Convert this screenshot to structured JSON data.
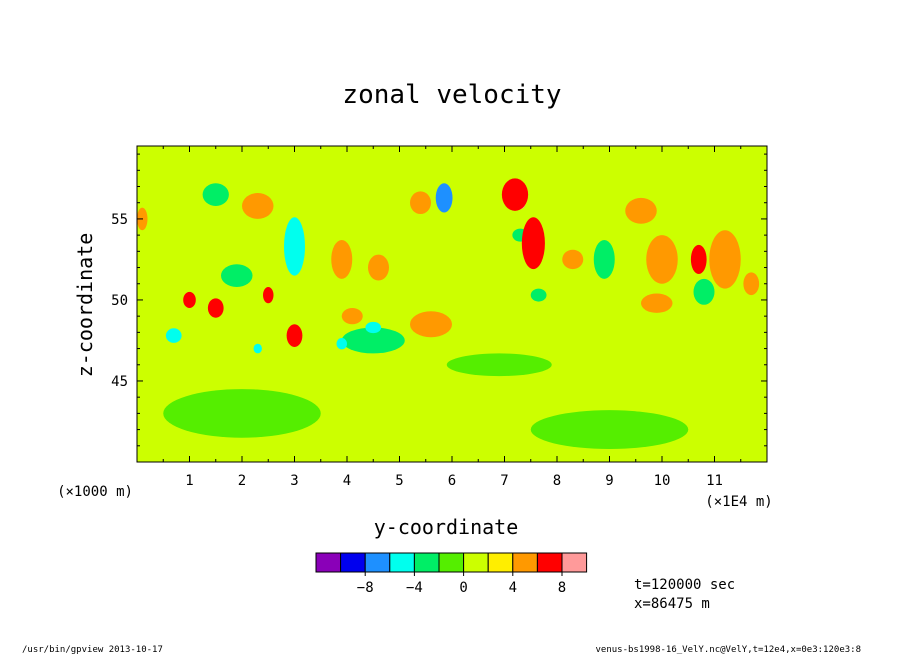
{
  "chart_data": {
    "type": "heatmap",
    "title": "zonal velocity",
    "xlabel": "y-coordinate",
    "ylabel": "z-coordinate",
    "x_scale_label": "(×1E4 m)",
    "y_scale_label": "(×1000 m)",
    "xlim": [
      0,
      12
    ],
    "ylim": [
      40,
      59.5
    ],
    "x_ticks": [
      "1",
      "2",
      "3",
      "4",
      "5",
      "6",
      "7",
      "8",
      "9",
      "10",
      "11"
    ],
    "y_ticks": [
      "45",
      "50",
      "55"
    ],
    "colorbar": {
      "levels": [
        -10,
        -8,
        -6,
        -4,
        -2,
        0,
        2,
        4,
        6,
        8,
        10
      ],
      "tick_labels": [
        "−8",
        "−4",
        "0",
        "4",
        "8"
      ],
      "colors": [
        "#8a00b8",
        "#0000ee",
        "#1e90ff",
        "#00ffee",
        "#00ee66",
        "#55ee00",
        "#ccff00",
        "#ffee00",
        "#ff9900",
        "#ff0000",
        "#ff9a9a"
      ]
    },
    "background_value": 1,
    "features": [
      {
        "y": 5.85,
        "z": 56.3,
        "value": -7.5,
        "wy": 0.16,
        "wz": 0.9
      },
      {
        "y": 3.0,
        "z": 53.3,
        "value": -5.5,
        "wy": 0.2,
        "wz": 1.8
      },
      {
        "y": 4.5,
        "z": 47.5,
        "value": -3.5,
        "wy": 0.6,
        "wz": 0.8
      },
      {
        "y": 4.5,
        "z": 48.3,
        "value": -5,
        "wy": 0.15,
        "wz": 0.35
      },
      {
        "y": 3.9,
        "z": 47.3,
        "value": -5,
        "wy": 0.1,
        "wz": 0.35
      },
      {
        "y": 0.7,
        "z": 47.8,
        "value": -5,
        "wy": 0.15,
        "wz": 0.45
      },
      {
        "y": 2.3,
        "z": 47.0,
        "value": -5,
        "wy": 0.08,
        "wz": 0.3
      },
      {
        "y": 1.5,
        "z": 56.5,
        "value": -3,
        "wy": 0.25,
        "wz": 0.7
      },
      {
        "y": 1.9,
        "z": 51.5,
        "value": -3,
        "wy": 0.3,
        "wz": 0.7
      },
      {
        "y": 8.9,
        "z": 52.5,
        "value": -3,
        "wy": 0.2,
        "wz": 1.2
      },
      {
        "y": 10.8,
        "z": 50.5,
        "value": -3,
        "wy": 0.2,
        "wz": 0.8
      },
      {
        "y": 7.3,
        "z": 54.0,
        "value": -3,
        "wy": 0.15,
        "wz": 0.4
      },
      {
        "y": 7.65,
        "z": 50.3,
        "value": -3,
        "wy": 0.15,
        "wz": 0.4
      },
      {
        "y": 7.6,
        "z": 53.2,
        "value": 9,
        "wy": 0.12,
        "wz": 1.0
      },
      {
        "y": 7.55,
        "z": 53.5,
        "value": 6,
        "wy": 0.22,
        "wz": 1.6
      },
      {
        "y": 7.3,
        "z": 56.0,
        "value": 9,
        "wy": 0.1,
        "wz": 0.4
      },
      {
        "y": 7.2,
        "z": 56.5,
        "value": 6,
        "wy": 0.25,
        "wz": 1.0
      },
      {
        "y": 1.0,
        "z": 50.0,
        "value": 6,
        "wy": 0.12,
        "wz": 0.5
      },
      {
        "y": 1.5,
        "z": 49.5,
        "value": 6,
        "wy": 0.15,
        "wz": 0.6
      },
      {
        "y": 3.0,
        "z": 47.8,
        "value": 6,
        "wy": 0.15,
        "wz": 0.7
      },
      {
        "y": 2.5,
        "z": 50.3,
        "value": 6,
        "wy": 0.1,
        "wz": 0.5
      },
      {
        "y": 10.7,
        "z": 52.5,
        "value": 6,
        "wy": 0.15,
        "wz": 0.9
      },
      {
        "y": 2.3,
        "z": 55.8,
        "value": 4,
        "wy": 0.3,
        "wz": 0.8
      },
      {
        "y": 3.9,
        "z": 52.5,
        "value": 4,
        "wy": 0.2,
        "wz": 1.2
      },
      {
        "y": 4.6,
        "z": 52.0,
        "value": 4,
        "wy": 0.2,
        "wz": 0.8
      },
      {
        "y": 4.1,
        "z": 49.0,
        "value": 4,
        "wy": 0.2,
        "wz": 0.5
      },
      {
        "y": 5.6,
        "z": 48.5,
        "value": 4,
        "wy": 0.4,
        "wz": 0.8
      },
      {
        "y": 8.3,
        "z": 52.5,
        "value": 4,
        "wy": 0.2,
        "wz": 0.6
      },
      {
        "y": 9.6,
        "z": 55.5,
        "value": 4,
        "wy": 0.3,
        "wz": 0.8
      },
      {
        "y": 10.0,
        "z": 52.5,
        "value": 4,
        "wy": 0.3,
        "wz": 1.5
      },
      {
        "y": 11.2,
        "z": 52.5,
        "value": 4,
        "wy": 0.3,
        "wz": 1.8
      },
      {
        "y": 9.9,
        "z": 49.8,
        "value": 4,
        "wy": 0.3,
        "wz": 0.6
      },
      {
        "y": 11.7,
        "z": 51.0,
        "value": 4,
        "wy": 0.15,
        "wz": 0.7
      },
      {
        "y": 0.1,
        "z": 55.0,
        "value": 4,
        "wy": 0.1,
        "wz": 0.7
      },
      {
        "y": 5.4,
        "z": 56.0,
        "value": 4,
        "wy": 0.2,
        "wz": 0.7
      },
      {
        "y": 6.9,
        "z": 46.0,
        "value": -2,
        "wy": 1.0,
        "wz": 0.7
      },
      {
        "y": 2.0,
        "z": 43.0,
        "value": -1,
        "wy": 1.5,
        "wz": 1.5
      },
      {
        "y": 9.0,
        "z": 42.0,
        "value": -1,
        "wy": 1.5,
        "wz": 1.2
      }
    ]
  },
  "footer": {
    "time_label": "t=120000 sec",
    "position_label": "x=86475 m",
    "program": "/usr/bin/gpview  2013-10-17",
    "source": "venus-bs1998-16_VelY.nc@VelY,t=12e4,x=0e3:120e3:8"
  }
}
